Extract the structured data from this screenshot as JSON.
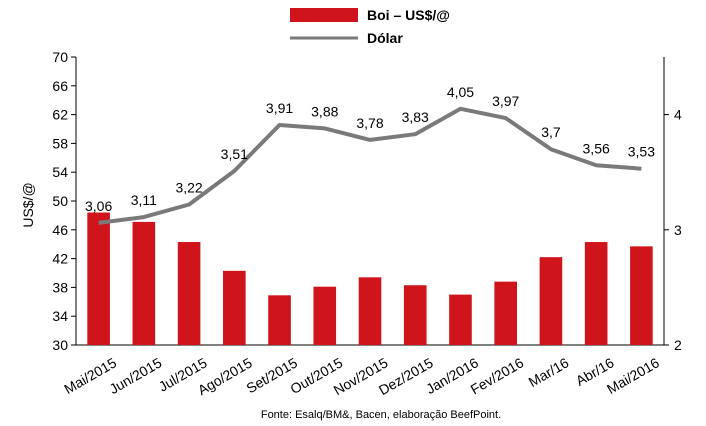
{
  "chart_data": {
    "type": "bar",
    "categories": [
      "Mai/2015",
      "Jun/2015",
      "Jul/2015",
      "Ago/2015",
      "Set/2015",
      "Out/2015",
      "Nov/2015",
      "Dez/2015",
      "Jan/2016",
      "Fev/2016",
      "Mar/16",
      "Abr/16",
      "Mai/2016"
    ],
    "series": [
      {
        "name": "Boi – US$/@",
        "type": "bar",
        "axis": "left",
        "color": "#d0141c",
        "values": [
          48.4,
          47.1,
          44.3,
          40.3,
          36.9,
          38.1,
          39.4,
          38.3,
          37.0,
          38.8,
          42.2,
          44.3,
          43.7
        ]
      },
      {
        "name": "Dólar",
        "type": "line",
        "axis": "right",
        "color": "#7a7a7a",
        "values": [
          3.06,
          3.11,
          3.22,
          3.51,
          3.91,
          3.88,
          3.78,
          3.83,
          4.05,
          3.97,
          3.7,
          3.56,
          3.53
        ],
        "labels": [
          "3,06",
          "3,11",
          "3,22",
          "3,51",
          "3,91",
          "3,88",
          "3,78",
          "3,83",
          "4,05",
          "3,97",
          "3,7",
          "3,56",
          "3,53"
        ]
      }
    ],
    "ylabel": "US$/@",
    "ylim": [
      30,
      70
    ],
    "yticks": [
      "70",
      "66",
      "62",
      "58",
      "54",
      "50",
      "46",
      "42",
      "38",
      "34",
      "30"
    ],
    "ylim_right": [
      2,
      4.5
    ],
    "yticks_right": [
      "4",
      "3",
      "2"
    ],
    "grid": false,
    "legend_position": "top"
  },
  "source": "Fonte: Esalq/BM&, Bacen, elaboração BeefPoint."
}
